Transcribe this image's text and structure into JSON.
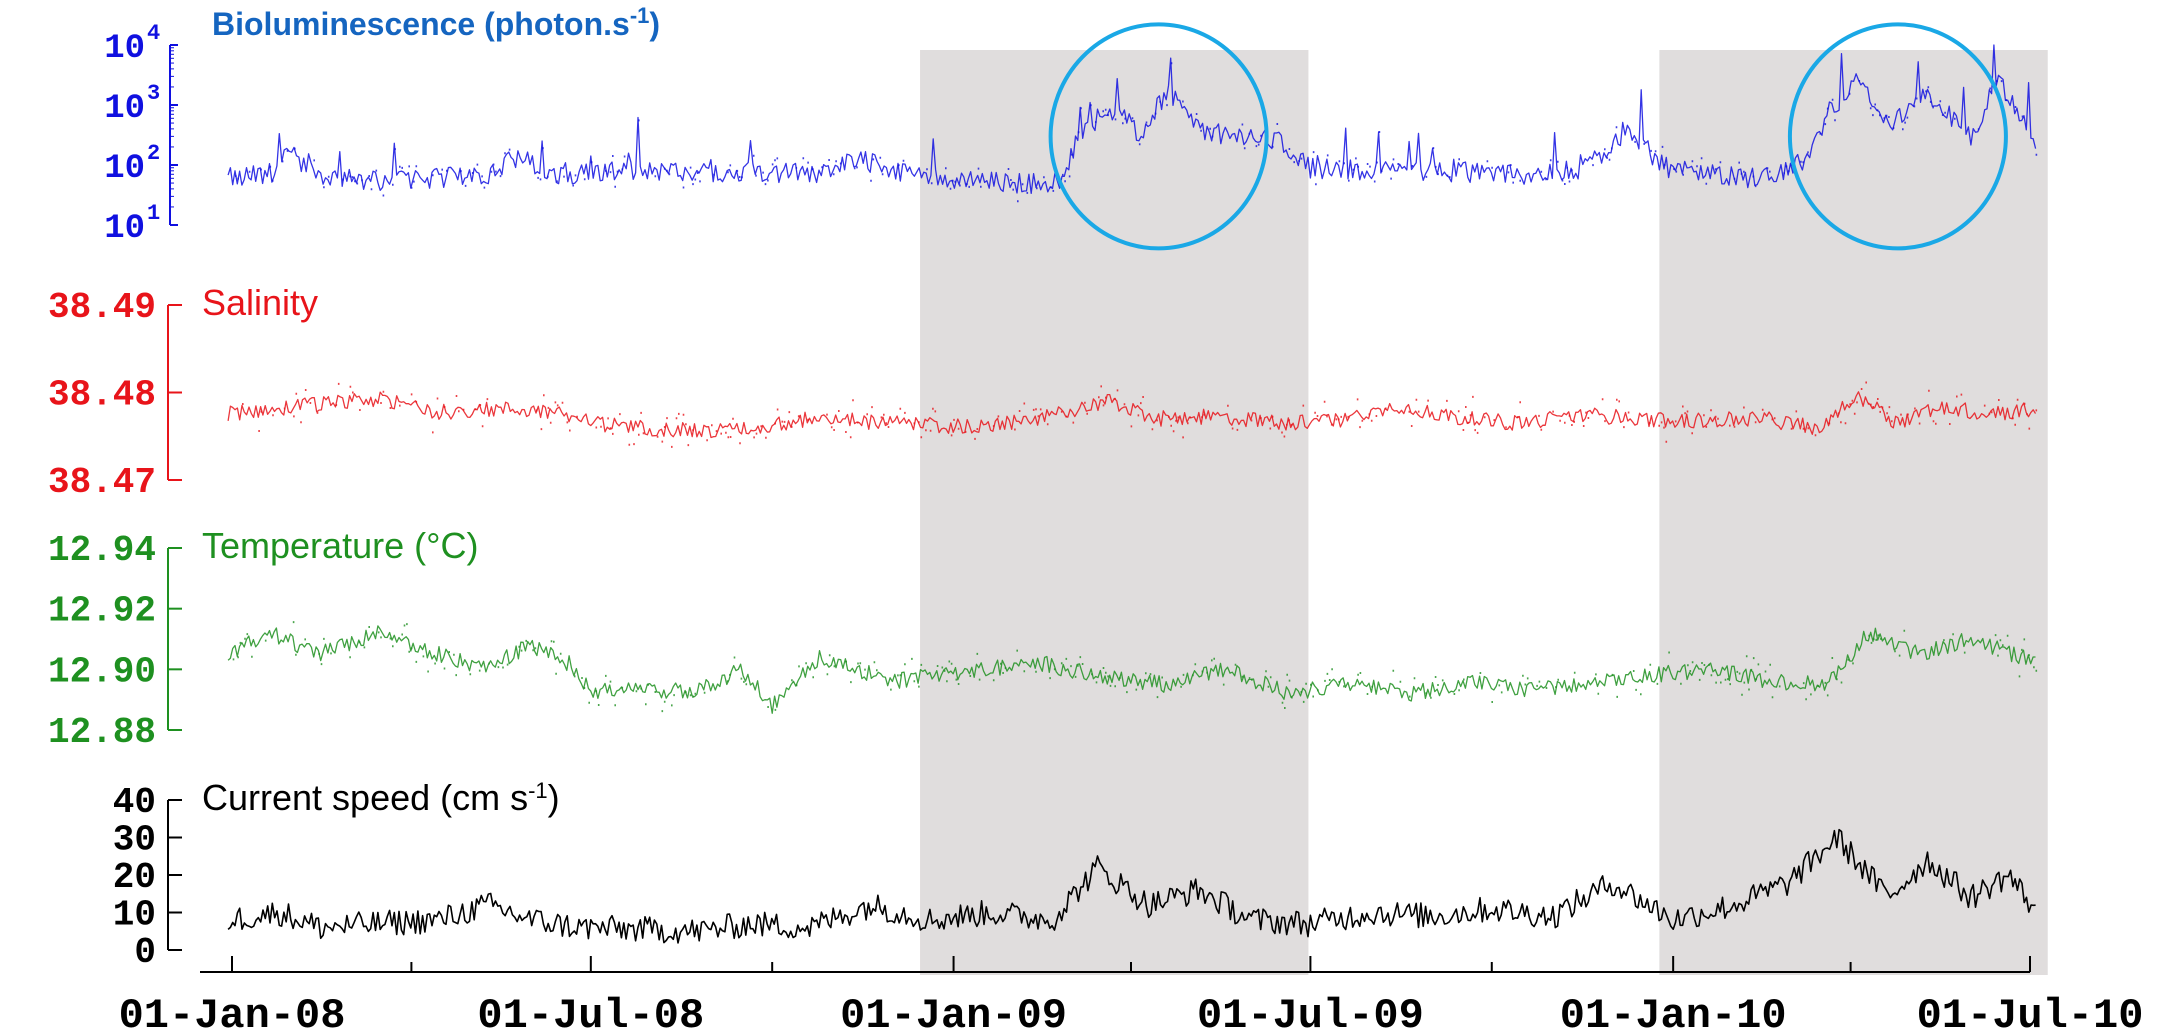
{
  "chart_data": {
    "type": "line",
    "x_axis": {
      "tick_labels": [
        "01-Jan-08",
        "01-Jul-08",
        "01-Jan-09",
        "01-Jul-09",
        "01-Jan-10",
        "01-Jul-10"
      ],
      "tick_dates": [
        "2008-01-01",
        "2008-07-01",
        "2009-01-01",
        "2009-07-01",
        "2010-01-01",
        "2010-07-01"
      ],
      "range": [
        "2007-12-01",
        "2010-07-15"
      ],
      "gap": [
        "2008-07-05",
        "2008-09-25"
      ]
    },
    "shaded_periods": [
      [
        "2008-12-15",
        "2009-06-30"
      ],
      [
        "2009-12-25",
        "2010-07-10"
      ]
    ],
    "panels": [
      {
        "key": "bio",
        "title": "Bioluminescence (photon.s",
        "title_sup": "-1",
        "title_suffix": ")",
        "color": "#1010e0",
        "title_color": "#1565c0",
        "scale": "log",
        "ylim": [
          10,
          10000
        ],
        "ticks": [
          {
            "base": "10",
            "exp": "1"
          },
          {
            "base": "10",
            "exp": "2"
          },
          {
            "base": "10",
            "exp": "3"
          },
          {
            "base": "10",
            "exp": "4"
          }
        ],
        "series": [
          {
            "x": "2007-12-30",
            "y": 60
          },
          {
            "x": "2008-01-20",
            "y": 70
          },
          {
            "x": "2008-01-30",
            "y": 150
          },
          {
            "x": "2008-02-15",
            "y": 65
          },
          {
            "x": "2008-03-15",
            "y": 55
          },
          {
            "x": "2008-04-15",
            "y": 60
          },
          {
            "x": "2008-05-10",
            "y": 70
          },
          {
            "x": "2008-05-25",
            "y": 140
          },
          {
            "x": "2008-06-10",
            "y": 70
          },
          {
            "x": "2008-07-01",
            "y": 75
          },
          {
            "x": "2008-08-25",
            "y": 75
          },
          {
            "x": "2008-09-20",
            "y": 80
          },
          {
            "x": "2008-10-20",
            "y": 70
          },
          {
            "x": "2008-11-15",
            "y": 120
          },
          {
            "x": "2008-12-05",
            "y": 80
          },
          {
            "x": "2009-01-05",
            "y": 55
          },
          {
            "x": "2009-02-01",
            "y": 50
          },
          {
            "x": "2009-02-25",
            "y": 50
          },
          {
            "x": "2009-03-05",
            "y": 280
          },
          {
            "x": "2009-03-15",
            "y": 600
          },
          {
            "x": "2009-03-25",
            "y": 900
          },
          {
            "x": "2009-04-05",
            "y": 300
          },
          {
            "x": "2009-04-20",
            "y": 1800
          },
          {
            "x": "2009-05-05",
            "y": 400
          },
          {
            "x": "2009-05-20",
            "y": 300
          },
          {
            "x": "2009-06-15",
            "y": 250
          },
          {
            "x": "2009-07-01",
            "y": 90
          },
          {
            "x": "2009-08-01",
            "y": 80
          },
          {
            "x": "2009-09-01",
            "y": 80
          },
          {
            "x": "2009-10-15",
            "y": 70
          },
          {
            "x": "2009-11-15",
            "y": 80
          },
          {
            "x": "2009-12-10",
            "y": 400
          },
          {
            "x": "2009-12-25",
            "y": 100
          },
          {
            "x": "2010-01-15",
            "y": 70
          },
          {
            "x": "2010-02-15",
            "y": 60
          },
          {
            "x": "2010-03-10",
            "y": 120
          },
          {
            "x": "2010-03-20",
            "y": 700
          },
          {
            "x": "2010-04-05",
            "y": 2500
          },
          {
            "x": "2010-04-20",
            "y": 400
          },
          {
            "x": "2010-05-10",
            "y": 1500
          },
          {
            "x": "2010-06-01",
            "y": 300
          },
          {
            "x": "2010-06-15",
            "y": 2500
          },
          {
            "x": "2010-07-05",
            "y": 200
          }
        ]
      },
      {
        "key": "sal",
        "title": "Salinity",
        "color": "#e8141a",
        "title_color": "#e8141a",
        "scale": "linear",
        "ylim": [
          38.47,
          38.49
        ],
        "ticks": [
          "38.47",
          "38.48",
          "38.49"
        ],
        "series": [
          {
            "x": "2007-12-30",
            "y": 38.4776
          },
          {
            "x": "2008-02-01",
            "y": 38.4784
          },
          {
            "x": "2008-03-15",
            "y": 38.4792
          },
          {
            "x": "2008-04-15",
            "y": 38.4778
          },
          {
            "x": "2008-05-20",
            "y": 38.4781
          },
          {
            "x": "2008-06-15",
            "y": 38.4778
          },
          {
            "x": "2008-07-01",
            "y": 38.4765
          },
          {
            "x": "2008-08-25",
            "y": 38.4755
          },
          {
            "x": "2008-09-25",
            "y": 38.476
          },
          {
            "x": "2008-10-20",
            "y": 38.477
          },
          {
            "x": "2008-12-01",
            "y": 38.4765
          },
          {
            "x": "2009-01-15",
            "y": 38.476
          },
          {
            "x": "2009-02-15",
            "y": 38.477
          },
          {
            "x": "2009-03-20",
            "y": 38.479
          },
          {
            "x": "2009-04-15",
            "y": 38.477
          },
          {
            "x": "2009-05-15",
            "y": 38.4773
          },
          {
            "x": "2009-06-15",
            "y": 38.4765
          },
          {
            "x": "2009-07-15",
            "y": 38.4768
          },
          {
            "x": "2009-08-15",
            "y": 38.4785
          },
          {
            "x": "2009-09-15",
            "y": 38.477
          },
          {
            "x": "2009-10-15",
            "y": 38.4765
          },
          {
            "x": "2009-11-15",
            "y": 38.4775
          },
          {
            "x": "2009-12-15",
            "y": 38.477
          },
          {
            "x": "2010-01-15",
            "y": 38.4768
          },
          {
            "x": "2010-02-15",
            "y": 38.477
          },
          {
            "x": "2010-03-15",
            "y": 38.476
          },
          {
            "x": "2010-04-05",
            "y": 38.4795
          },
          {
            "x": "2010-04-25",
            "y": 38.4765
          },
          {
            "x": "2010-05-15",
            "y": 38.4785
          },
          {
            "x": "2010-06-10",
            "y": 38.4775
          },
          {
            "x": "2010-07-05",
            "y": 38.4782
          }
        ]
      },
      {
        "key": "temp",
        "title": "Temperature (°C)",
        "color": "#1e9020",
        "title_color": "#1e9020",
        "scale": "linear",
        "ylim": [
          12.88,
          12.94
        ],
        "ticks": [
          "12.88",
          "12.90",
          "12.92",
          "12.94"
        ],
        "series": [
          {
            "x": "2007-12-30",
            "y": 12.905
          },
          {
            "x": "2008-01-20",
            "y": 12.912
          },
          {
            "x": "2008-02-15",
            "y": 12.905
          },
          {
            "x": "2008-03-15",
            "y": 12.912
          },
          {
            "x": "2008-04-15",
            "y": 12.905
          },
          {
            "x": "2008-05-10",
            "y": 12.9
          },
          {
            "x": "2008-05-30",
            "y": 12.908
          },
          {
            "x": "2008-06-20",
            "y": 12.902
          },
          {
            "x": "2008-07-01",
            "y": 12.893
          },
          {
            "x": "2008-08-25",
            "y": 12.893
          },
          {
            "x": "2008-09-15",
            "y": 12.9
          },
          {
            "x": "2008-10-01",
            "y": 12.888
          },
          {
            "x": "2008-10-25",
            "y": 12.904
          },
          {
            "x": "2008-12-01",
            "y": 12.896
          },
          {
            "x": "2009-01-15",
            "y": 12.9
          },
          {
            "x": "2009-02-15",
            "y": 12.902
          },
          {
            "x": "2009-03-20",
            "y": 12.897
          },
          {
            "x": "2009-04-20",
            "y": 12.895
          },
          {
            "x": "2009-05-20",
            "y": 12.9
          },
          {
            "x": "2009-06-20",
            "y": 12.892
          },
          {
            "x": "2009-07-20",
            "y": 12.895
          },
          {
            "x": "2009-08-20",
            "y": 12.892
          },
          {
            "x": "2009-09-20",
            "y": 12.896
          },
          {
            "x": "2009-10-20",
            "y": 12.893
          },
          {
            "x": "2009-11-20",
            "y": 12.895
          },
          {
            "x": "2009-12-20",
            "y": 12.898
          },
          {
            "x": "2010-01-20",
            "y": 12.9
          },
          {
            "x": "2010-02-20",
            "y": 12.896
          },
          {
            "x": "2010-03-20",
            "y": 12.895
          },
          {
            "x": "2010-04-10",
            "y": 12.912
          },
          {
            "x": "2010-05-05",
            "y": 12.905
          },
          {
            "x": "2010-06-01",
            "y": 12.91
          },
          {
            "x": "2010-07-05",
            "y": 12.902
          }
        ]
      },
      {
        "key": "cur",
        "title": "Current speed (cm s",
        "title_sup": "-1",
        "title_suffix": ")",
        "color": "#000000",
        "title_color": "#000000",
        "scale": "linear",
        "ylim": [
          0,
          40
        ],
        "ticks": [
          "0",
          "10",
          "20",
          "30",
          "40"
        ],
        "series": [
          {
            "x": "2007-12-30",
            "y": 8
          },
          {
            "x": "2008-01-25",
            "y": 10
          },
          {
            "x": "2008-02-15",
            "y": 6
          },
          {
            "x": "2008-03-15",
            "y": 7
          },
          {
            "x": "2008-04-15",
            "y": 8
          },
          {
            "x": "2008-05-10",
            "y": 12
          },
          {
            "x": "2008-06-01",
            "y": 8
          },
          {
            "x": "2008-06-25",
            "y": 6
          },
          {
            "x": "2008-08-25",
            "y": 5
          },
          {
            "x": "2008-09-20",
            "y": 7
          },
          {
            "x": "2008-10-20",
            "y": 6
          },
          {
            "x": "2008-11-20",
            "y": 12
          },
          {
            "x": "2008-12-20",
            "y": 8
          },
          {
            "x": "2009-01-20",
            "y": 10
          },
          {
            "x": "2009-02-20",
            "y": 8
          },
          {
            "x": "2009-03-15",
            "y": 22
          },
          {
            "x": "2009-04-10",
            "y": 12
          },
          {
            "x": "2009-05-05",
            "y": 16
          },
          {
            "x": "2009-06-01",
            "y": 8
          },
          {
            "x": "2009-07-01",
            "y": 7
          },
          {
            "x": "2009-08-01",
            "y": 10
          },
          {
            "x": "2009-09-01",
            "y": 9
          },
          {
            "x": "2009-10-01",
            "y": 11
          },
          {
            "x": "2009-11-01",
            "y": 9
          },
          {
            "x": "2009-12-01",
            "y": 18
          },
          {
            "x": "2010-01-01",
            "y": 8
          },
          {
            "x": "2010-02-01",
            "y": 12
          },
          {
            "x": "2010-03-01",
            "y": 18
          },
          {
            "x": "2010-03-25",
            "y": 30
          },
          {
            "x": "2010-04-20",
            "y": 14
          },
          {
            "x": "2010-05-10",
            "y": 24
          },
          {
            "x": "2010-06-01",
            "y": 14
          },
          {
            "x": "2010-06-20",
            "y": 20
          },
          {
            "x": "2010-07-05",
            "y": 10
          }
        ]
      }
    ],
    "highlight_circles": [
      {
        "x": "2009-04-15",
        "y": 300,
        "color": "#1aa8e6"
      },
      {
        "x": "2010-04-25",
        "y": 300,
        "color": "#1aa8e6"
      }
    ]
  }
}
